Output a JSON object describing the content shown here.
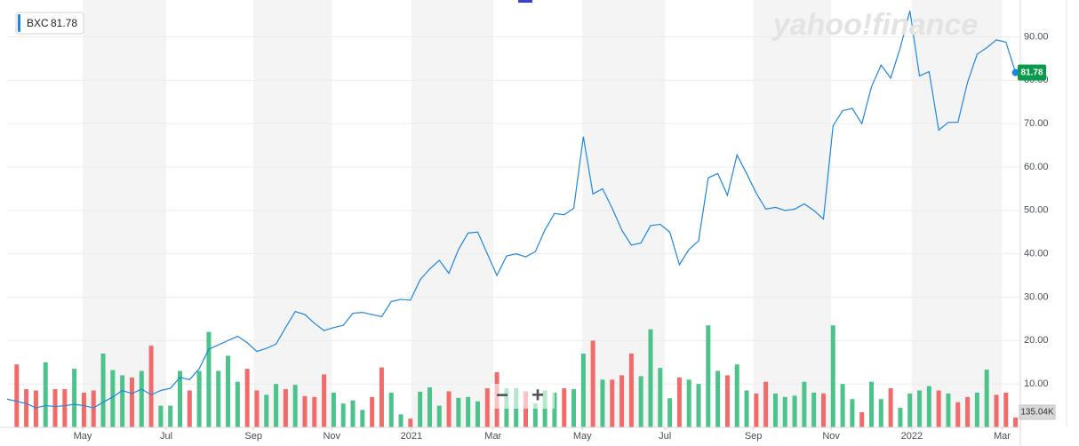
{
  "chart_data": {
    "type": "line",
    "x": [
      0,
      1,
      2,
      3,
      4,
      5,
      6,
      7,
      8,
      9,
      10,
      11,
      12,
      13,
      14,
      15,
      16,
      17,
      18,
      19,
      20,
      21,
      22,
      23,
      24,
      25,
      26,
      27,
      28,
      29,
      30,
      31,
      32,
      33,
      34,
      35,
      36,
      37,
      38,
      39,
      40,
      41,
      42,
      43,
      44,
      45,
      46,
      47,
      48,
      49,
      50,
      51,
      52,
      53,
      54,
      55,
      56,
      57,
      58,
      59,
      60,
      61,
      62,
      63,
      64,
      65,
      66,
      67,
      68,
      69,
      70,
      71,
      72,
      73,
      74,
      75,
      76,
      77,
      78,
      79,
      80,
      81,
      82,
      83,
      84,
      85,
      86,
      87,
      88,
      89,
      90,
      91,
      92,
      93,
      94,
      95,
      96,
      97,
      98,
      99,
      100,
      101,
      102,
      103,
      104,
      105
    ],
    "xlim": [
      0,
      105.5
    ],
    "xticks": [
      {
        "value": 7.87,
        "label": "May"
      },
      {
        "value": 16.57,
        "label": "Jul"
      },
      {
        "value": 25.65,
        "label": "Sep"
      },
      {
        "value": 33.8,
        "label": "Nov"
      },
      {
        "value": 42.1,
        "label": "2021"
      },
      {
        "value": 50.6,
        "label": "Mar"
      },
      {
        "value": 59.9,
        "label": "May"
      },
      {
        "value": 68.5,
        "label": "Jul"
      },
      {
        "value": 77.7,
        "label": "Sep"
      },
      {
        "value": 85.8,
        "label": "Nov"
      },
      {
        "value": 94.2,
        "label": "2022"
      },
      {
        "value": 103.6,
        "label": "Mar"
      }
    ],
    "ylim": [
      0,
      98.5
    ],
    "yticks": [
      {
        "value": 10,
        "label": "10.00"
      },
      {
        "value": 20,
        "label": "20.00"
      },
      {
        "value": 30,
        "label": "30.00"
      },
      {
        "value": 40,
        "label": "40.00"
      },
      {
        "value": 50,
        "label": "50.00"
      },
      {
        "value": 60,
        "label": "60.00"
      },
      {
        "value": 70,
        "label": "70.00"
      },
      {
        "value": 80,
        "label": "80.00"
      },
      {
        "value": 90,
        "label": "90.00"
      }
    ],
    "y2lim": [
      0,
      5910
    ],
    "grid": true,
    "series": [
      {
        "name": "BXC",
        "color": "#1f86e0",
        "values": [
          6.5,
          6.0,
          5.5,
          4.5,
          5.0,
          4.8,
          5.0,
          5.3,
          5.0,
          4.5,
          5.8,
          7.0,
          8.5,
          7.8,
          8.8,
          7.5,
          8.5,
          9.0,
          11.5,
          11.0,
          13.5,
          18.0,
          19.0,
          20.0,
          21.0,
          19.5,
          17.5,
          18.2,
          19.2,
          23.0,
          26.7,
          26.0,
          24.0,
          22.3,
          23.0,
          23.5,
          26.3,
          26.5,
          26.0,
          25.5,
          29.0,
          29.5,
          29.3,
          34.0,
          36.5,
          38.5,
          35.5,
          41.0,
          44.8,
          45.0,
          40.0,
          35.0,
          39.5,
          40.0,
          39.3,
          40.5,
          45.5,
          49.3,
          49.0,
          50.5,
          67.0,
          53.8,
          55.0,
          50.5,
          45.5,
          42.0,
          42.5,
          46.5,
          46.8,
          45.0,
          37.5,
          41.0,
          43.0,
          57.5,
          58.5,
          53.5,
          62.8,
          58.5,
          54.0,
          50.3,
          50.7,
          50.0,
          50.3,
          51.5,
          50.0,
          48.0,
          69.5,
          73.0,
          73.5,
          70.0,
          78.5,
          83.5,
          80.5,
          87.5,
          96.0,
          81.0,
          82.0,
          68.5,
          70.3,
          70.3,
          79.5,
          86.0,
          87.5,
          89.3,
          88.8,
          81.78
        ]
      },
      {
        "type": "bar",
        "axis": "y2",
        "color": "#f26b6b",
        "values": [
          null,
          870,
          528,
          510,
          null,
          528,
          528,
          null,
          480,
          510,
          null,
          null,
          null,
          690,
          null,
          1128,
          null,
          null,
          null,
          510,
          null,
          null,
          null,
          null,
          null,
          810,
          510,
          null,
          null,
          528,
          null,
          432,
          420,
          732,
          null,
          null,
          null,
          null,
          420,
          828,
          null,
          null,
          120,
          null,
          null,
          null,
          498,
          null,
          null,
          null,
          540,
          762,
          null,
          null,
          498,
          null,
          null,
          null,
          540,
          null,
          null,
          1200,
          null,
          660,
          720,
          1020,
          null,
          null,
          null,
          null,
          690,
          null,
          null,
          null,
          null,
          720,
          null,
          null,
          468,
          630,
          null,
          null,
          null,
          null,
          null,
          468,
          null,
          null,
          null,
          210,
          null,
          null,
          540,
          null,
          null,
          null,
          null,
          510,
          null,
          348,
          420,
          null,
          null,
          450,
          480,
          135.04
        ]
      },
      {
        "type": "bar",
        "axis": "y2",
        "color": "#4cc38a",
        "values": [
          null,
          null,
          null,
          null,
          900,
          null,
          null,
          810,
          null,
          null,
          1020,
          792,
          720,
          null,
          780,
          null,
          300,
          300,
          780,
          null,
          780,
          1320,
          780,
          990,
          630,
          null,
          null,
          450,
          600,
          null,
          588,
          null,
          null,
          null,
          480,
          330,
          372,
          240,
          null,
          null,
          480,
          180,
          null,
          492,
          552,
          300,
          null,
          408,
          420,
          360,
          null,
          null,
          540,
          540,
          null,
          330,
          510,
          480,
          null,
          528,
          1020,
          null,
          660,
          null,
          null,
          null,
          708,
          1356,
          822,
          402,
          null,
          660,
          600,
          1410,
          780,
          null,
          870,
          510,
          null,
          null,
          468,
          420,
          438,
          630,
          480,
          null,
          1410,
          600,
          390,
          null,
          630,
          390,
          null,
          270,
          468,
          510,
          570,
          null,
          468,
          null,
          null,
          480,
          798,
          null,
          null,
          null
        ]
      }
    ],
    "volume_label": "135.04K"
  },
  "watermark": "yahoo!finance",
  "zoom_controls": [
    "−",
    "+"
  ]
}
